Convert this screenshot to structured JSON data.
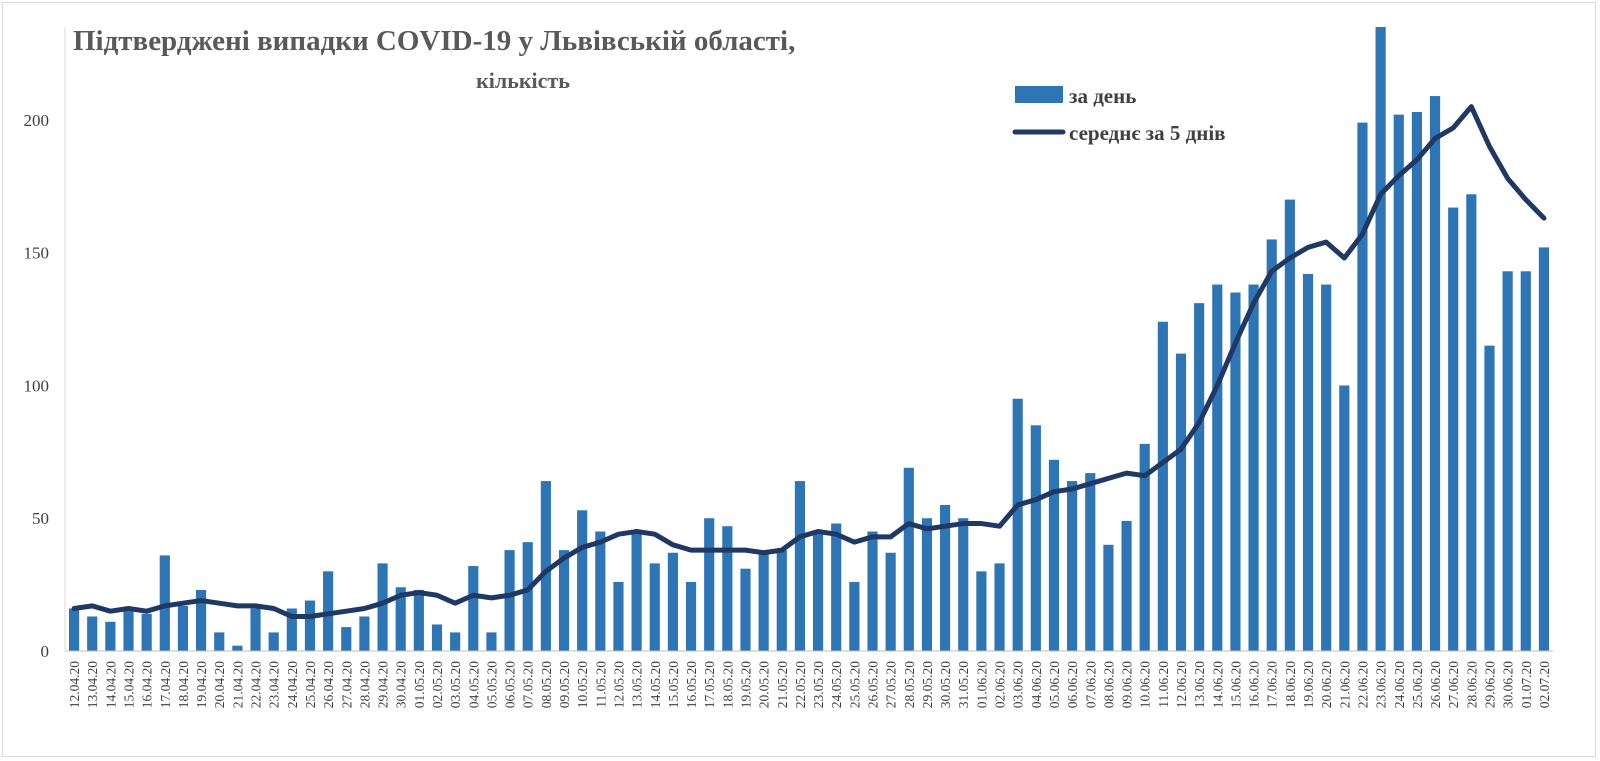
{
  "chart_data": {
    "type": "bar",
    "title": "Підтверджені випадки COVID-19 у Львівській області,",
    "subtitle": "кількість",
    "ylim": [
      0,
      235
    ],
    "yticks": [
      0,
      50,
      100,
      150,
      200
    ],
    "grid": false,
    "legend_position": "top-right",
    "colors": {
      "bar": "#2e75b6",
      "line": "#1f3864",
      "text": "#404040",
      "title": "#595959"
    },
    "categories": [
      "12.04.20",
      "13.04.20",
      "14.04.20",
      "15.04.20",
      "16.04.20",
      "17.04.20",
      "18.04.20",
      "19.04.20",
      "20.04.20",
      "21.04.20",
      "22.04.20",
      "23.04.20",
      "24.04.20",
      "25.04.20",
      "26.04.20",
      "27.04.20",
      "28.04.20",
      "29.04.20",
      "30.04.20",
      "01.05.20",
      "02.05.20",
      "03.05.20",
      "04.05.20",
      "05.05.20",
      "06.05.20",
      "07.05.20",
      "08.05.20",
      "09.05.20",
      "10.05.20",
      "11.05.20",
      "12.05.20",
      "13.05.20",
      "14.05.20",
      "15.05.20",
      "16.05.20",
      "17.05.20",
      "18.05.20",
      "19.05.20",
      "20.05.20",
      "21.05.20",
      "22.05.20",
      "23.05.20",
      "24.05.20",
      "25.05.20",
      "26.05.20",
      "27.05.20",
      "28.05.20",
      "29.05.20",
      "30.05.20",
      "31.05.20",
      "01.06.20",
      "02.06.20",
      "03.06.20",
      "04.06.20",
      "05.06.20",
      "06.06.20",
      "07.06.20",
      "08.06.20",
      "09.06.20",
      "10.06.20",
      "11.06.20",
      "12.06.20",
      "13.06.20",
      "14.06.20",
      "15.06.20",
      "16.06.20",
      "17.06.20",
      "18.06.20",
      "19.06.20",
      "20.06.20",
      "21.06.20",
      "22.06.20",
      "23.06.20",
      "24.06.20",
      "25.06.20",
      "26.06.20",
      "27.06.20",
      "28.06.20",
      "29.06.20",
      "30.06.20",
      "01.07.20",
      "02.07.20"
    ],
    "series": [
      {
        "name": "за день",
        "kind": "bar",
        "values": [
          16,
          13,
          11,
          15,
          14,
          36,
          17,
          23,
          7,
          2,
          16,
          7,
          16,
          19,
          30,
          9,
          13,
          33,
          24,
          23,
          10,
          7,
          32,
          7,
          38,
          41,
          64,
          38,
          53,
          45,
          26,
          44,
          33,
          37,
          26,
          50,
          47,
          31,
          38,
          38,
          64,
          44,
          48,
          26,
          45,
          37,
          69,
          50,
          55,
          50,
          30,
          33,
          95,
          85,
          72,
          64,
          67,
          40,
          49,
          78,
          124,
          112,
          131,
          138,
          135,
          138,
          155,
          170,
          142,
          138,
          100,
          199,
          235,
          202,
          203,
          209,
          167,
          172,
          115,
          143,
          143,
          152
        ]
      },
      {
        "name": "середнє за 5 днів",
        "kind": "line",
        "values": [
          16,
          17,
          15,
          16,
          15,
          17,
          18,
          19,
          18,
          17,
          17,
          16,
          13,
          13,
          14,
          15,
          16,
          18,
          21,
          22,
          21,
          18,
          21,
          20,
          21,
          23,
          30,
          35,
          39,
          41,
          44,
          45,
          44,
          40,
          38,
          38,
          38,
          38,
          37,
          38,
          43,
          45,
          44,
          41,
          43,
          43,
          48,
          46,
          47,
          48,
          48,
          47,
          55,
          57,
          60,
          61,
          63,
          65,
          67,
          66,
          71,
          76,
          86,
          100,
          116,
          131,
          143,
          148,
          152,
          154,
          148,
          157,
          172,
          179,
          185,
          193,
          197,
          205,
          190,
          178,
          170,
          163
        ]
      }
    ]
  }
}
